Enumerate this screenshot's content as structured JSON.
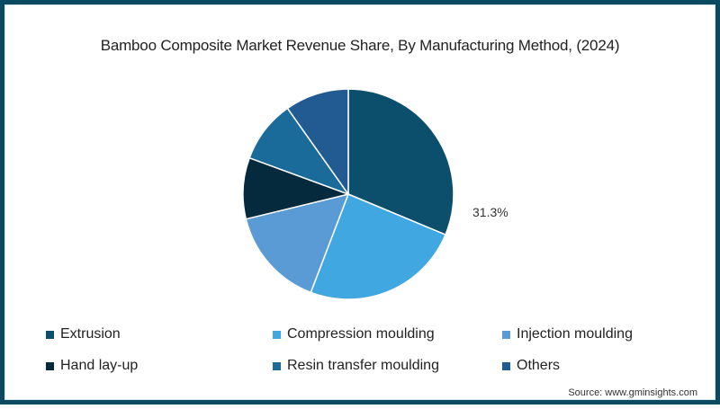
{
  "title": "Bamboo Composite Market Revenue Share, By Manufacturing Method,  (2024)",
  "source": "Source: www.gminsights.com",
  "colors": {
    "frame": "#0c4a62",
    "extrusion": "#0b4f6c",
    "compression_moulding": "#41a7e0",
    "injection_moulding": "#5b9bd5",
    "hand_lay_up": "#062a3d",
    "resin_transfer_moulding": "#1a6a9a",
    "others": "#225b92"
  },
  "legend": [
    {
      "label": "Extrusion",
      "color": "#0b4f6c"
    },
    {
      "label": "Compression moulding",
      "color": "#41a7e0"
    },
    {
      "label": "Injection moulding",
      "color": "#5b9bd5"
    },
    {
      "label": "Hand lay-up",
      "color": "#062a3d"
    },
    {
      "label": "Resin transfer moulding",
      "color": "#1a6a9a"
    },
    {
      "label": "Others",
      "color": "#225b92"
    }
  ],
  "chart_data": {
    "type": "pie",
    "title": "Bamboo Composite Market Revenue Share, By Manufacturing Method,  (2024)",
    "categories": [
      "Extrusion",
      "Compression moulding",
      "Injection moulding",
      "Hand lay-up",
      "Resin transfer moulding",
      "Others"
    ],
    "values": [
      31.3,
      24.5,
      15.4,
      9.4,
      9.6,
      9.8
    ],
    "colors": [
      "#0b4f6c",
      "#41a7e0",
      "#5b9bd5",
      "#062a3d",
      "#1a6a9a",
      "#225b92"
    ],
    "data_labels": [
      {
        "category": "Extrusion",
        "text": "31.3%"
      }
    ],
    "start_angle_deg": 0,
    "direction": "clockwise",
    "legend_position": "bottom",
    "unit": "%"
  }
}
